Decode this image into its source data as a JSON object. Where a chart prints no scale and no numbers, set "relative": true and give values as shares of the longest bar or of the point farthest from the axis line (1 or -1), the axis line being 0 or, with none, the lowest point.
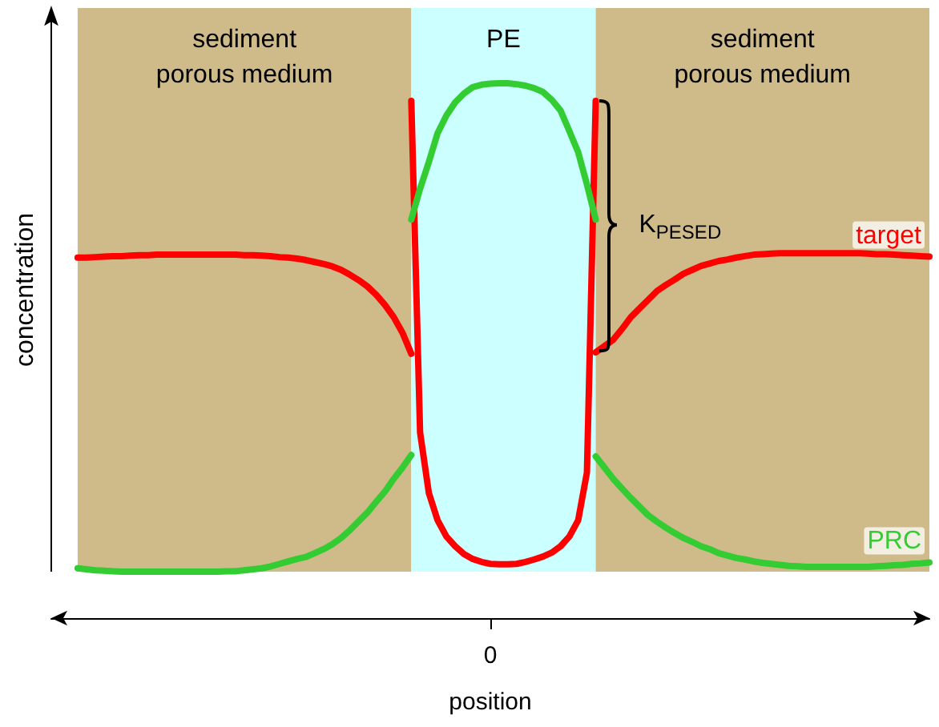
{
  "chart_data": {
    "type": "line",
    "relative": true,
    "xlabel": "position",
    "ylabel": "concentration",
    "categories": [
      null,
      null,
      null,
      null,
      null,
      null,
      null,
      null,
      null,
      null,
      null,
      null,
      null,
      null,
      null,
      null,
      null,
      null,
      null,
      null,
      null,
      null,
      null,
      null,
      null,
      null,
      null,
      null,
      null,
      null,
      null,
      null,
      null,
      null,
      null,
      null,
      null,
      null,
      null,
      null,
      null,
      null,
      null,
      null,
      null,
      null,
      null,
      null,
      null,
      null,
      null,
      null,
      null,
      null,
      null,
      null,
      null,
      null,
      null,
      null,
      null,
      null,
      null,
      null,
      null,
      null,
      null,
      null,
      null,
      null,
      null,
      null,
      null,
      null,
      null,
      null,
      null,
      null,
      null,
      null,
      null,
      null,
      null,
      null,
      null,
      null,
      null,
      null,
      null,
      null,
      null,
      null,
      null,
      null,
      null,
      null,
      null,
      null,
      null,
      null,
      null
    ],
    "series": [
      {
        "color": "#ff0000",
        "values": [
          null,
          null,
          null,
          0.643,
          0.643,
          0.644,
          0.645,
          0.646,
          0.646,
          0.647,
          0.648,
          0.648,
          0.649,
          0.649,
          0.649,
          0.649,
          0.649,
          0.649,
          0.649,
          0.649,
          0.649,
          0.649,
          0.648,
          0.648,
          0.647,
          0.646,
          0.644,
          0.643,
          0.641,
          0.638,
          0.634,
          0.63,
          0.625,
          0.618,
          0.608,
          0.597,
          0.584,
          0.567,
          0.546,
          0.521,
          0.489,
          0.446,
          null,
          null,
          null,
          null,
          null,
          null,
          null,
          null,
          null,
          null,
          null,
          null,
          null,
          null,
          null,
          null,
          null,
          null,
          null,
          null,
          null,
          null,
          null,
          null,
          null,
          null,
          null,
          null,
          null,
          null,
          null,
          null,
          null,
          null,
          null,
          null,
          null,
          null,
          null,
          null,
          null,
          null,
          null,
          null,
          null,
          null,
          null,
          null,
          null,
          null,
          null,
          null,
          null,
          null,
          null,
          null,
          null,
          null,
          null
        ]
      },
      {
        "color": "#ff0000",
        "values": [
          null,
          null,
          null,
          null,
          null,
          null,
          null,
          null,
          null,
          null,
          null,
          null,
          null,
          null,
          null,
          null,
          null,
          null,
          null,
          null,
          null,
          null,
          null,
          null,
          null,
          null,
          null,
          null,
          null,
          null,
          null,
          null,
          null,
          null,
          null,
          null,
          null,
          null,
          null,
          null,
          null,
          0.964,
          0.285,
          0.161,
          0.105,
          0.072,
          0.052,
          0.036,
          0.026,
          0.02,
          0.016,
          0.015,
          0.015,
          0.016,
          0.02,
          0.025,
          0.031,
          0.039,
          0.052,
          0.072,
          0.105,
          0.203,
          0.964,
          null,
          null,
          null,
          null,
          null,
          null,
          null,
          null,
          null,
          null,
          null,
          null,
          null,
          null,
          null,
          null,
          null,
          null,
          null,
          null,
          null,
          null,
          null,
          null,
          null,
          null,
          null,
          null,
          null,
          null,
          null,
          null,
          null,
          null,
          null,
          null,
          null,
          null
        ]
      },
      {
        "name": "target",
        "color": "#ff0000",
        "values": [
          null,
          null,
          null,
          null,
          null,
          null,
          null,
          null,
          null,
          null,
          null,
          null,
          null,
          null,
          null,
          null,
          null,
          null,
          null,
          null,
          null,
          null,
          null,
          null,
          null,
          null,
          null,
          null,
          null,
          null,
          null,
          null,
          null,
          null,
          null,
          null,
          null,
          null,
          null,
          null,
          null,
          null,
          null,
          null,
          null,
          null,
          null,
          null,
          null,
          null,
          null,
          null,
          null,
          null,
          null,
          null,
          null,
          null,
          null,
          null,
          null,
          null,
          0.449,
          0.462,
          0.475,
          0.497,
          0.521,
          0.539,
          0.557,
          0.575,
          0.587,
          0.598,
          0.61,
          0.618,
          0.626,
          0.631,
          0.636,
          0.639,
          0.643,
          0.646,
          0.649,
          0.65,
          0.651,
          0.652,
          0.652,
          0.652,
          0.652,
          0.652,
          0.652,
          0.652,
          0.652,
          0.652,
          0.652,
          0.651,
          0.65,
          0.65,
          0.649,
          0.648,
          0.647,
          0.646,
          0.645
        ]
      },
      {
        "color": "#33cc33",
        "values": [
          null,
          null,
          null,
          0.007,
          0.005,
          0.003,
          0.002,
          0.001,
          0,
          0,
          0,
          0,
          0,
          0,
          0,
          0,
          0,
          0,
          0,
          0,
          0.001,
          0.001,
          0.003,
          0.005,
          0.007,
          0.011,
          0.016,
          0.021,
          0.026,
          0.03,
          0.038,
          0.046,
          0.056,
          0.069,
          0.085,
          0.103,
          0.121,
          0.143,
          0.164,
          0.19,
          0.213,
          0.239,
          null,
          null,
          null,
          null,
          null,
          null,
          null,
          null,
          null,
          null,
          null,
          null,
          null,
          null,
          null,
          null,
          null,
          null,
          null,
          null,
          null,
          null,
          null,
          null,
          null,
          null,
          null,
          null,
          null,
          null,
          null,
          null,
          null,
          null,
          null,
          null,
          null,
          null,
          null,
          null,
          null,
          null,
          null,
          null,
          null,
          null,
          null,
          null,
          null,
          null,
          null,
          null,
          null,
          null,
          null,
          null,
          null,
          null,
          null
        ]
      },
      {
        "color": "#33cc33",
        "values": [
          null,
          null,
          null,
          null,
          null,
          null,
          null,
          null,
          null,
          null,
          null,
          null,
          null,
          null,
          null,
          null,
          null,
          null,
          null,
          null,
          null,
          null,
          null,
          null,
          null,
          null,
          null,
          null,
          null,
          null,
          null,
          null,
          null,
          null,
          null,
          null,
          null,
          null,
          null,
          null,
          null,
          0.721,
          0.784,
          0.839,
          0.898,
          0.934,
          0.961,
          0.979,
          0.992,
          0.997,
          0.999,
          1,
          1,
          0.998,
          0.995,
          0.99,
          0.982,
          0.966,
          0.944,
          0.902,
          0.859,
          0.793,
          0.721,
          null,
          null,
          null,
          null,
          null,
          null,
          null,
          null,
          null,
          null,
          null,
          null,
          null,
          null,
          null,
          null,
          null,
          null,
          null,
          null,
          null,
          null,
          null,
          null,
          null,
          null,
          null,
          null,
          null,
          null,
          null,
          null,
          null,
          null,
          null,
          null,
          null,
          null
        ]
      },
      {
        "name": "PRC",
        "color": "#33cc33",
        "values": [
          null,
          null,
          null,
          null,
          null,
          null,
          null,
          null,
          null,
          null,
          null,
          null,
          null,
          null,
          null,
          null,
          null,
          null,
          null,
          null,
          null,
          null,
          null,
          null,
          null,
          null,
          null,
          null,
          null,
          null,
          null,
          null,
          null,
          null,
          null,
          null,
          null,
          null,
          null,
          null,
          null,
          null,
          null,
          null,
          null,
          null,
          null,
          null,
          null,
          null,
          null,
          null,
          null,
          null,
          null,
          null,
          null,
          null,
          null,
          null,
          null,
          null,
          0.236,
          0.213,
          0.19,
          0.17,
          0.151,
          0.133,
          0.115,
          0.102,
          0.09,
          0.079,
          0.069,
          0.061,
          0.052,
          0.046,
          0.038,
          0.033,
          0.028,
          0.025,
          0.021,
          0.018,
          0.016,
          0.014,
          0.012,
          0.011,
          0.01,
          0.01,
          0.01,
          0.01,
          0.01,
          0.01,
          0.01,
          0.01,
          0.011,
          0.012,
          0.013,
          0.014,
          0.016,
          0.017,
          0.019
        ]
      }
    ],
    "annotations": [
      "sediment\nporous medium",
      "PE",
      "sediment\nporous medium",
      "0",
      "K$_{PESED}$"
    ]
  }
}
